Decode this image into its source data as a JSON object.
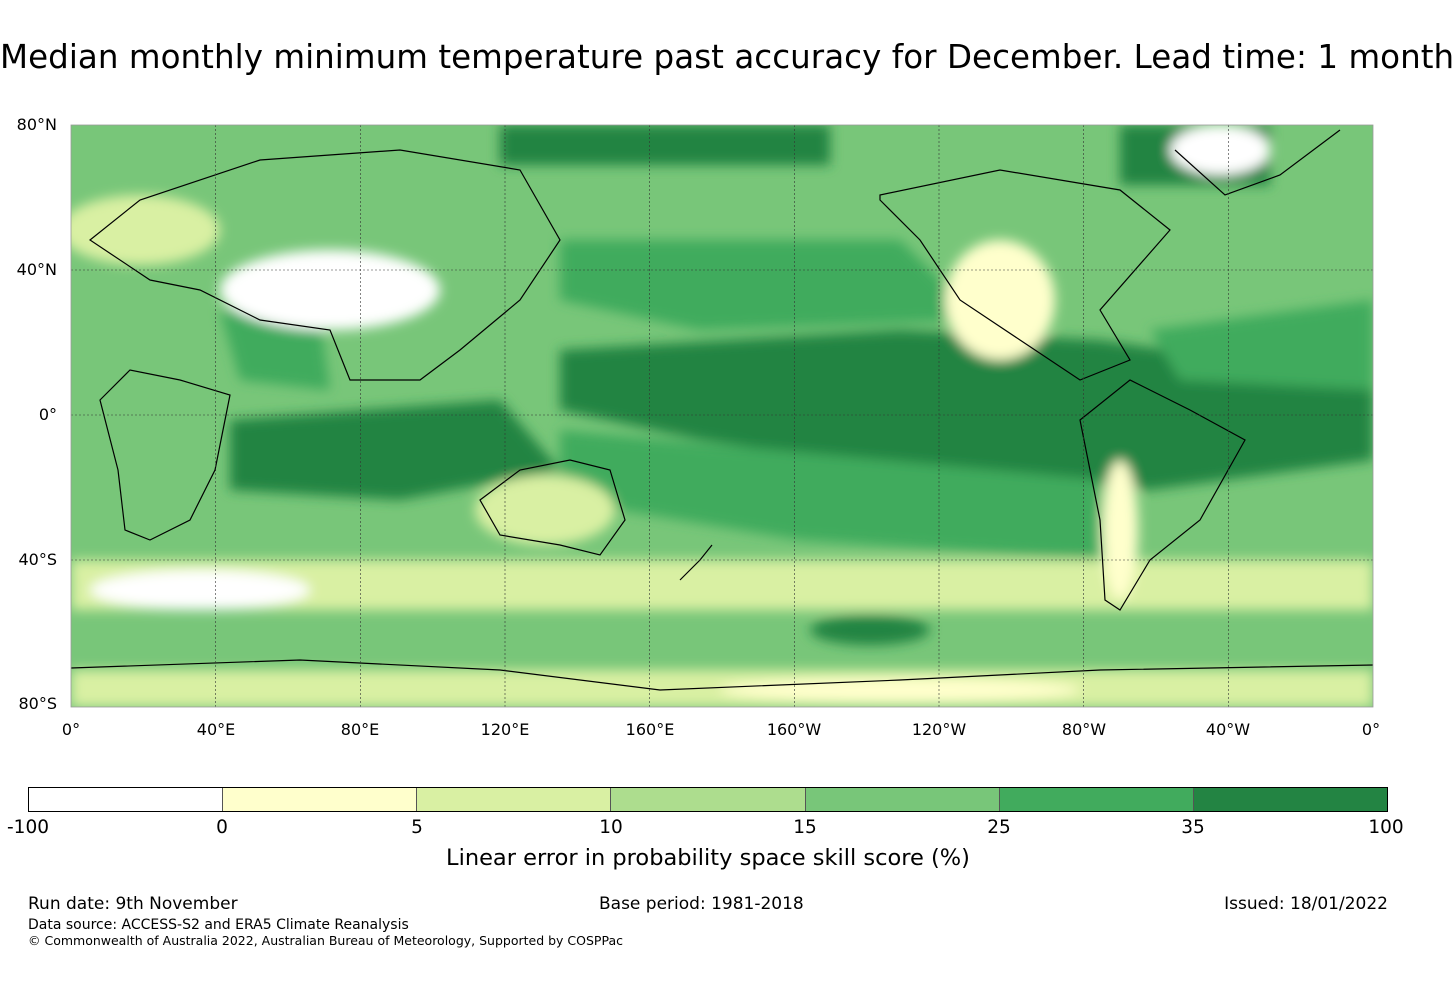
{
  "title": "Median monthly minimum temperature past accuracy for December. Lead time: 1 month",
  "map": {
    "lat_labels": [
      "80°N",
      "40°N",
      "0°",
      "40°S",
      "80°S"
    ],
    "lon_labels": [
      "0°",
      "40°E",
      "80°E",
      "120°E",
      "160°E",
      "160°W",
      "120°W",
      "80°W",
      "40°W",
      "0°"
    ]
  },
  "colorbar": {
    "colors": [
      "#ffffff",
      "#ffffcc",
      "#d9f0a3",
      "#addd8e",
      "#78c679",
      "#41ab5d",
      "#238443"
    ],
    "ticks": [
      "-100",
      "0",
      "5",
      "10",
      "15",
      "25",
      "35",
      "100"
    ],
    "label": "Linear error in probability space skill score (%)"
  },
  "footer": {
    "run_date": "Run date: 9th November",
    "base_period": "Base period: 1981-2018",
    "issued": "Issued: 18/01/2022",
    "data_source": "Data source: ACCESS-S2 and ERA5 Climate Reanalysis",
    "copyright": "© Commonwealth of Australia 2022, Australian Bureau of Meteorology, Supported by COSPPac"
  }
}
